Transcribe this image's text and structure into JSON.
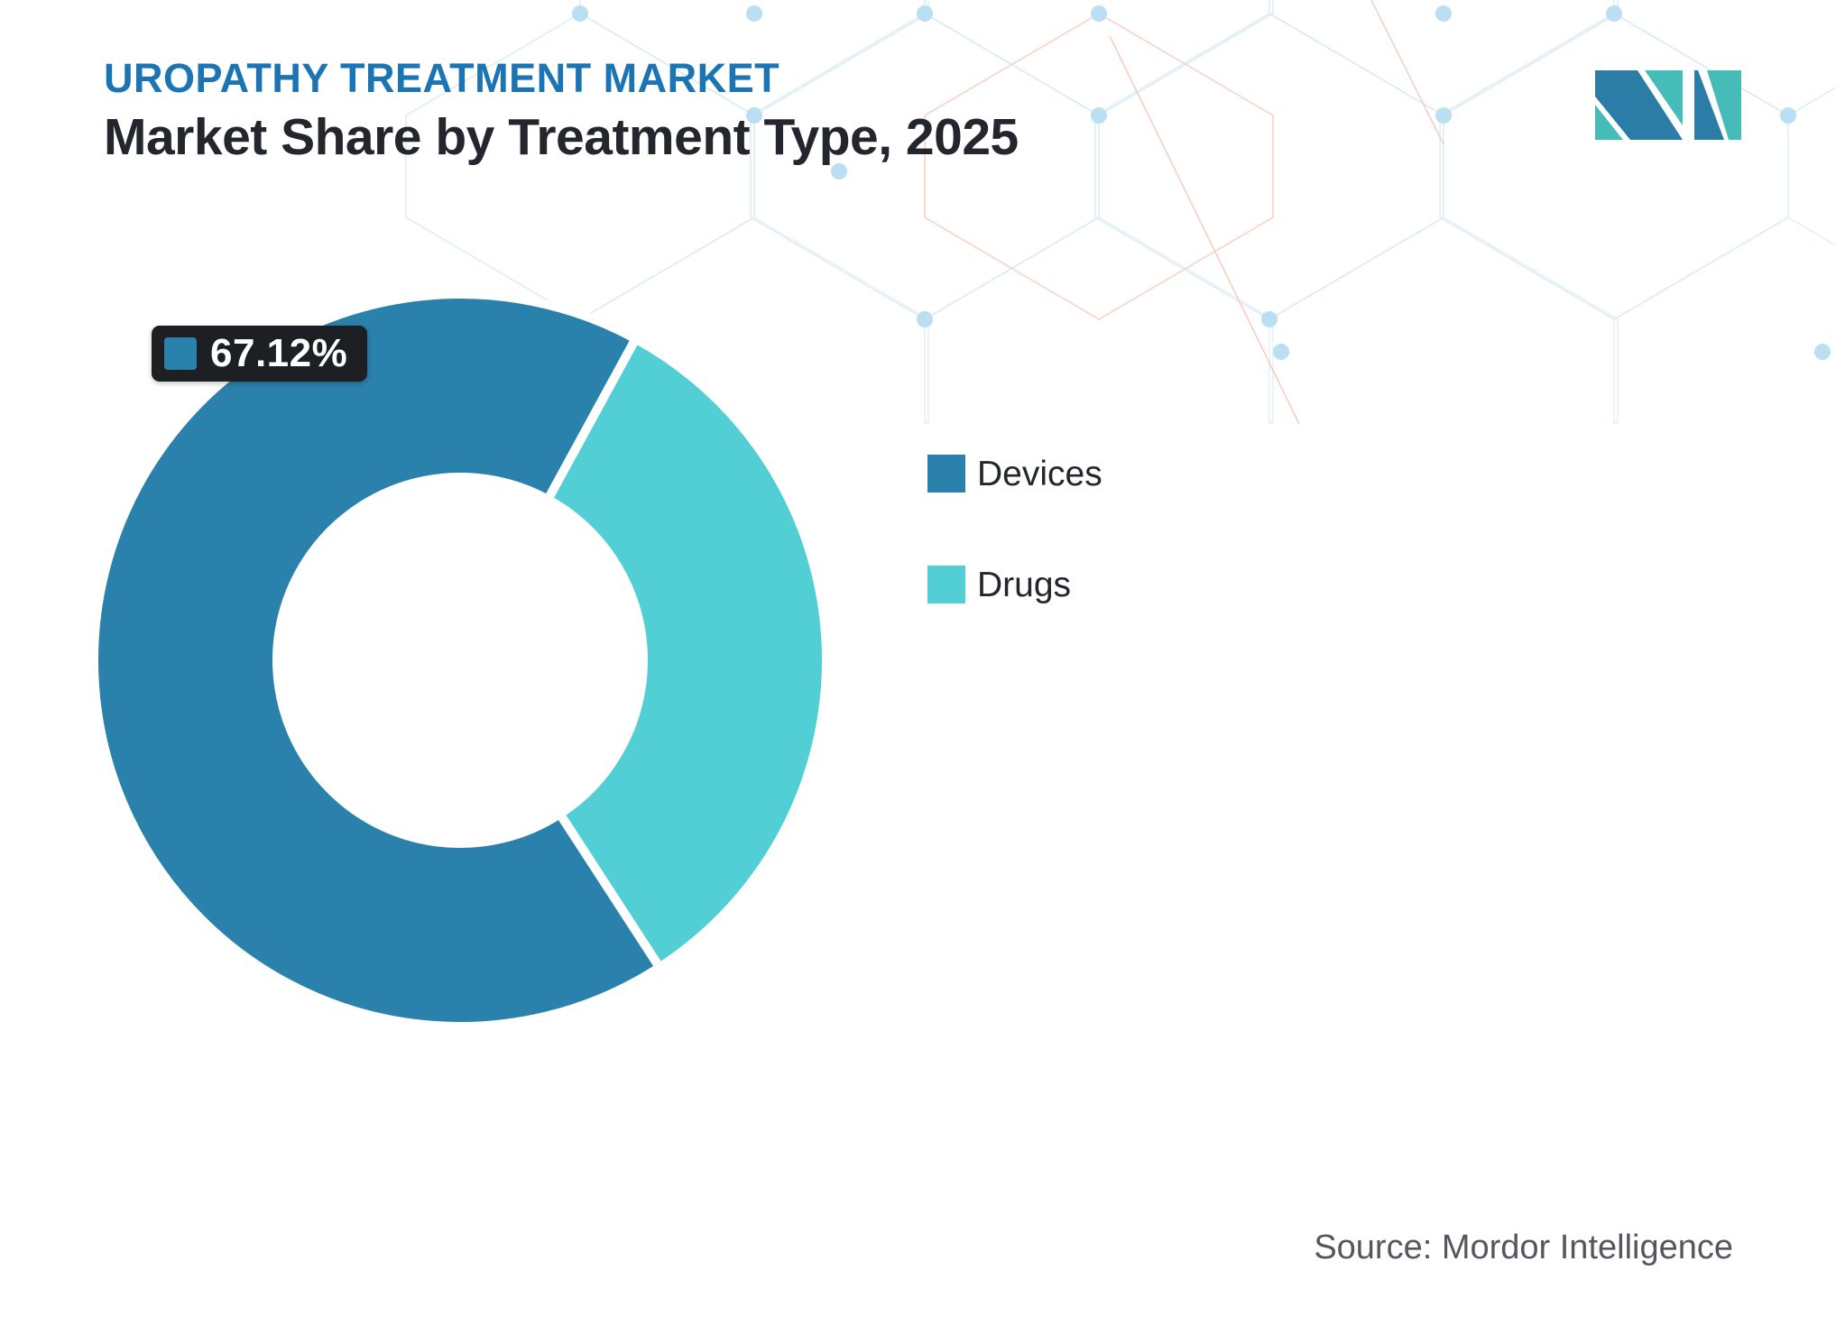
{
  "header": {
    "eyebrow": "UROPATHY TREATMENT MARKET",
    "title": "Market Share by Treatment Type, 2025"
  },
  "branding": {
    "logo_alt": "Mordor Intelligence logo",
    "logo_blue": "#2B7CA7",
    "logo_teal": "#45BCB7"
  },
  "source": {
    "text": "Source: Mordor Intelligence"
  },
  "colors": {
    "accent_blue": "#2A81AB",
    "accent_teal": "#52CFD4",
    "eyebrow_blue": "#1B74B4",
    "badge_bg": "#1E1F22",
    "text_dark": "#23262C",
    "text_gray": "#54585E",
    "pattern_line": "#DCEBF4",
    "pattern_dot": "#BADEF2",
    "pattern_orange": "#F4C9BA"
  },
  "chart_data": {
    "type": "pie",
    "title": "Market Share by Treatment Type, 2025",
    "donut": true,
    "inner_radius_ratio": 0.5,
    "start_angle_deg": 147,
    "legend_position": "right",
    "grid": false,
    "series": [
      {
        "name": "Devices",
        "value": 67.12,
        "color": "#2A81AB",
        "label": "67.12%"
      },
      {
        "name": "Drugs",
        "value": 32.88,
        "color": "#52CFD4",
        "label": "32.88%"
      }
    ],
    "data_label": {
      "series": "Devices",
      "text": "67.12%"
    }
  }
}
